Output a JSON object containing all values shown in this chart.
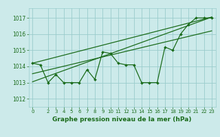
{
  "hours": [
    0,
    1,
    2,
    3,
    4,
    5,
    6,
    7,
    8,
    9,
    10,
    11,
    12,
    13,
    14,
    15,
    16,
    17,
    18,
    19,
    20,
    21,
    22,
    23
  ],
  "pressure": [
    1014.2,
    1014.1,
    1013.0,
    1013.5,
    1013.0,
    1013.0,
    1013.0,
    1013.8,
    1013.2,
    1014.9,
    1014.8,
    1014.2,
    1014.1,
    1014.1,
    1013.0,
    1013.0,
    1013.0,
    1015.2,
    1015.0,
    1016.0,
    1016.6,
    1017.0,
    1017.0,
    1017.0
  ],
  "trend_line1_x": [
    0,
    23
  ],
  "trend_line1_y": [
    1013.05,
    1017.05
  ],
  "trend_line2_x": [
    0,
    23
  ],
  "trend_line2_y": [
    1014.2,
    1017.05
  ],
  "trend_line3_x": [
    0,
    23
  ],
  "trend_line3_y": [
    1013.55,
    1016.2
  ],
  "bg_color": "#cceaea",
  "grid_color": "#99cccc",
  "line_color": "#1a6b1a",
  "xlabel": "Graphe pression niveau de la mer (hPa)",
  "ylim": [
    1011.5,
    1017.6
  ],
  "xlim": [
    -0.5,
    23.5
  ],
  "yticks": [
    1012,
    1013,
    1014,
    1015,
    1016,
    1017
  ],
  "xticks": [
    0,
    2,
    3,
    4,
    5,
    6,
    7,
    8,
    9,
    10,
    11,
    12,
    13,
    14,
    15,
    16,
    17,
    18,
    19,
    20,
    21,
    22,
    23
  ]
}
